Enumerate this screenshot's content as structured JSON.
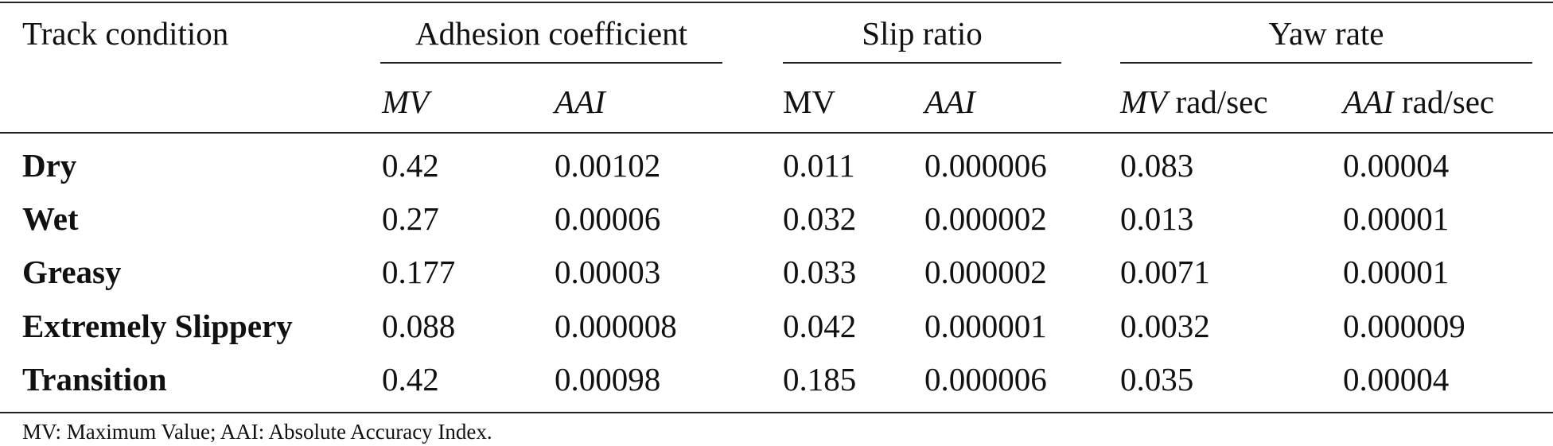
{
  "table": {
    "header": {
      "row_label": "Track condition",
      "groups": [
        {
          "title": "Adhesion coefficient",
          "sub": [
            {
              "main": "MV",
              "italic": true,
              "suffix": ""
            },
            {
              "main": "AAI",
              "italic": true,
              "suffix": ""
            }
          ]
        },
        {
          "title": "Slip ratio",
          "sub": [
            {
              "main": "MV",
              "italic": false,
              "suffix": ""
            },
            {
              "main": "AAI",
              "italic": true,
              "suffix": ""
            }
          ]
        },
        {
          "title": "Yaw rate",
          "sub": [
            {
              "main": "MV",
              "italic": true,
              "suffix": " rad/sec"
            },
            {
              "main": "AAI",
              "italic": true,
              "suffix": " rad/sec"
            }
          ]
        }
      ]
    },
    "rows": [
      {
        "label": "Dry",
        "values": [
          "0.42",
          "0.00102",
          "0.011",
          "0.000006",
          "0.083",
          "0.00004"
        ]
      },
      {
        "label": "Wet",
        "values": [
          "0.27",
          "0.00006",
          "0.032",
          "0.000002",
          "0.013",
          "0.00001"
        ]
      },
      {
        "label": "Greasy",
        "values": [
          "0.177",
          "0.00003",
          "0.033",
          "0.000002",
          "0.0071",
          "0.00001"
        ]
      },
      {
        "label": "Extremely Slippery",
        "values": [
          "0.088",
          "0.000008",
          "0.042",
          "0.000001",
          "0.0032",
          "0.000009"
        ]
      },
      {
        "label": "Transition",
        "values": [
          "0.42",
          "0.00098",
          "0.185",
          "0.000006",
          "0.035",
          "0.00004"
        ]
      }
    ],
    "footnote": "MV: Maximum Value; AAI: Absolute Accuracy Index."
  }
}
